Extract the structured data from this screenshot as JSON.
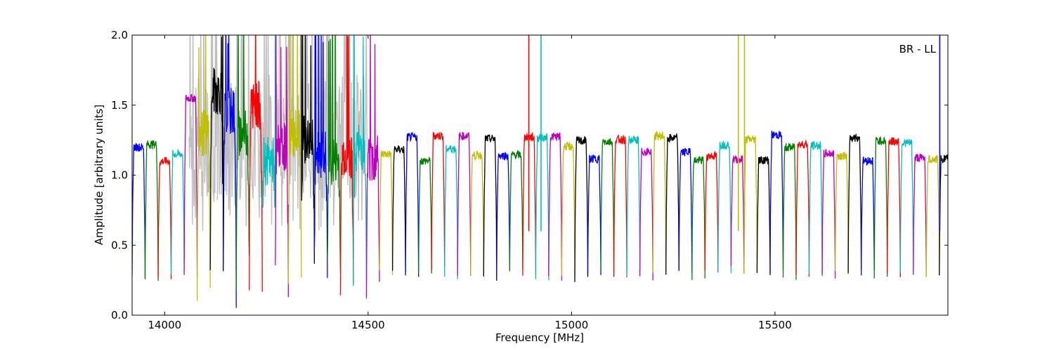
{
  "chart_data": {
    "type": "line",
    "title": "",
    "annotation": "BR - LL",
    "xlabel": "Frequency [MHz]",
    "ylabel": "Amplitude [arbitrary units]",
    "xlim": [
      13920,
      15925
    ],
    "ylim": [
      0.0,
      2.0
    ],
    "x_ticks": [
      14000,
      14500,
      15000,
      15500
    ],
    "x_tick_labels": [
      "14000",
      "14500",
      "15000",
      "15500"
    ],
    "y_ticks": [
      0.0,
      0.5,
      1.0,
      1.5,
      2.0
    ],
    "y_tick_labels": [
      "0.0",
      "0.5",
      "1.0",
      "1.5",
      "2.0"
    ],
    "grid": false,
    "legend": "none",
    "background_series_color": "#bfbfbf",
    "channel_colors": [
      "#0000ff",
      "#008000",
      "#ff0000",
      "#00bfbf",
      "#bf00bf",
      "#bfbf00",
      "#000000"
    ],
    "channel_start_mhz": 13920,
    "channel_width_mhz": 32,
    "channel_edges": [
      {
        "start": 13920,
        "lo": 0.25,
        "plateau": 1.2
      },
      {
        "start": 13952,
        "lo": 0.26,
        "plateau": 1.22
      },
      {
        "start": 13984,
        "lo": 0.28,
        "plateau": 1.1
      },
      {
        "start": 14016,
        "lo": 0.3,
        "plateau": 1.15
      },
      {
        "start": 14048,
        "lo": 0.26,
        "plateau": 1.55
      },
      {
        "start": 14080,
        "lo": 0.24,
        "plateau": 1.3
      },
      {
        "start": 14112,
        "lo": 0.22,
        "plateau": 1.6
      },
      {
        "start": 14144,
        "lo": 0.21,
        "plateau": 1.45
      },
      {
        "start": 14176,
        "lo": 0.26,
        "plateau": 1.3
      },
      {
        "start": 14208,
        "lo": 0.25,
        "plateau": 1.5
      },
      {
        "start": 14240,
        "lo": 0.62,
        "plateau": 1.1
      },
      {
        "start": 14272,
        "lo": 0.3,
        "plateau": 1.2
      },
      {
        "start": 14304,
        "lo": 0.33,
        "plateau": 1.3
      },
      {
        "start": 14336,
        "lo": 0.38,
        "plateau": 1.25
      },
      {
        "start": 14368,
        "lo": 0.3,
        "plateau": 1.15
      },
      {
        "start": 14400,
        "lo": 0.3,
        "plateau": 1.1
      },
      {
        "start": 14432,
        "lo": 0.31,
        "plateau": 1.15
      },
      {
        "start": 14464,
        "lo": 0.16,
        "plateau": 1.2
      },
      {
        "start": 14496,
        "lo": 0.3,
        "plateau": 1.12
      },
      {
        "start": 14528,
        "lo": 0.3,
        "plateau": 1.15
      }
    ]
  }
}
